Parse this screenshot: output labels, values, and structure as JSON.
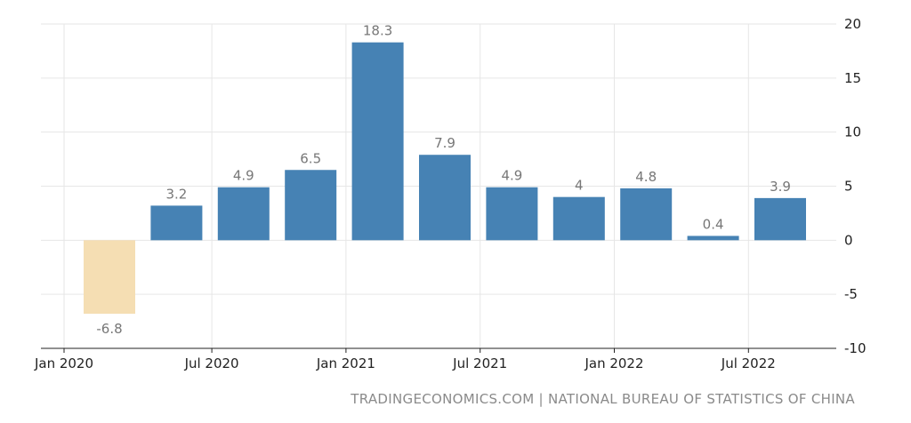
{
  "chart_data": {
    "type": "bar",
    "categories": [
      "Q1 2020",
      "Q2 2020",
      "Q3 2020",
      "Q4 2020",
      "Q1 2021",
      "Q2 2021",
      "Q3 2021",
      "Q4 2021",
      "Q1 2022",
      "Q2 2022",
      "Q3 2022"
    ],
    "values": [
      -6.8,
      3.2,
      4.9,
      6.5,
      18.3,
      7.9,
      4.9,
      4.0,
      4.8,
      0.4,
      3.9
    ],
    "value_labels": [
      "-6.8",
      "3.2",
      "4.9",
      "6.5",
      "18.3",
      "7.9",
      "4.9",
      "4",
      "4.8",
      "0.4",
      "3.9"
    ],
    "highlight_index": 0,
    "x_tick_labels": [
      "Jan 2020",
      "Jul 2020",
      "Jan 2021",
      "Jul 2021",
      "Jan 2022",
      "Jul 2022"
    ],
    "y_ticks": [
      20,
      15,
      10,
      5,
      0,
      -5,
      -10
    ],
    "ylim": [
      -10,
      20
    ],
    "y_axis_side": "right",
    "grid": true,
    "title": "",
    "xlabel": "",
    "ylabel": "",
    "colors": {
      "bar": "#4682b4",
      "highlight": "#f5deb3",
      "grid": "#e6e6e6",
      "axis": "#222222"
    }
  },
  "source": "TRADINGECONOMICS.COM | NATIONAL BUREAU OF STATISTICS OF CHINA"
}
